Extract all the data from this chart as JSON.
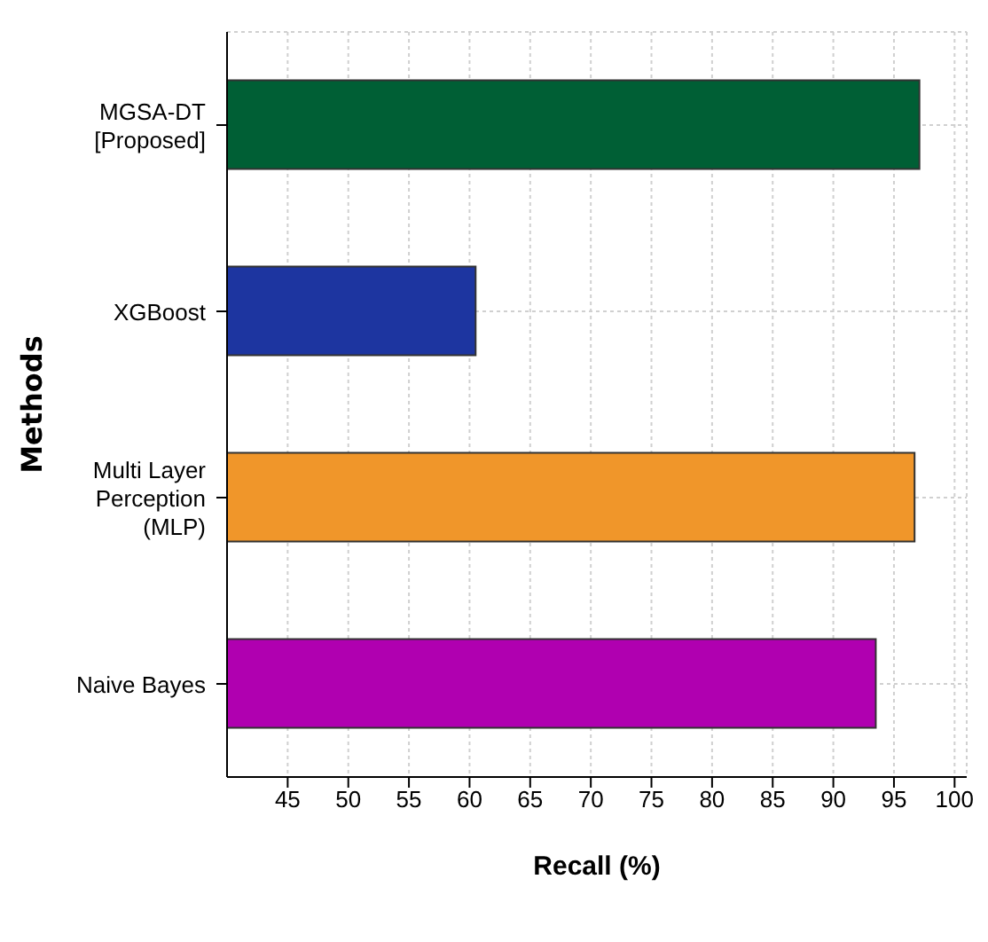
{
  "chart_data": {
    "type": "bar",
    "orientation": "horizontal",
    "xlabel": "Recall (%)",
    "ylabel": "Methods",
    "categories": [
      "MGSA-DT\n[Proposed]",
      "XGBoost",
      "Multi Layer\nPerception\n(MLP)",
      "Naive Bayes"
    ],
    "values": [
      97.1,
      60.5,
      96.7,
      93.5
    ],
    "colors": [
      "#005f35",
      "#1d35a0",
      "#f0962a",
      "#b000b0"
    ],
    "xlim": [
      40,
      101
    ],
    "xticks": [
      45,
      50,
      55,
      60,
      65,
      70,
      75,
      80,
      85,
      90,
      95,
      100
    ],
    "grid": true
  }
}
